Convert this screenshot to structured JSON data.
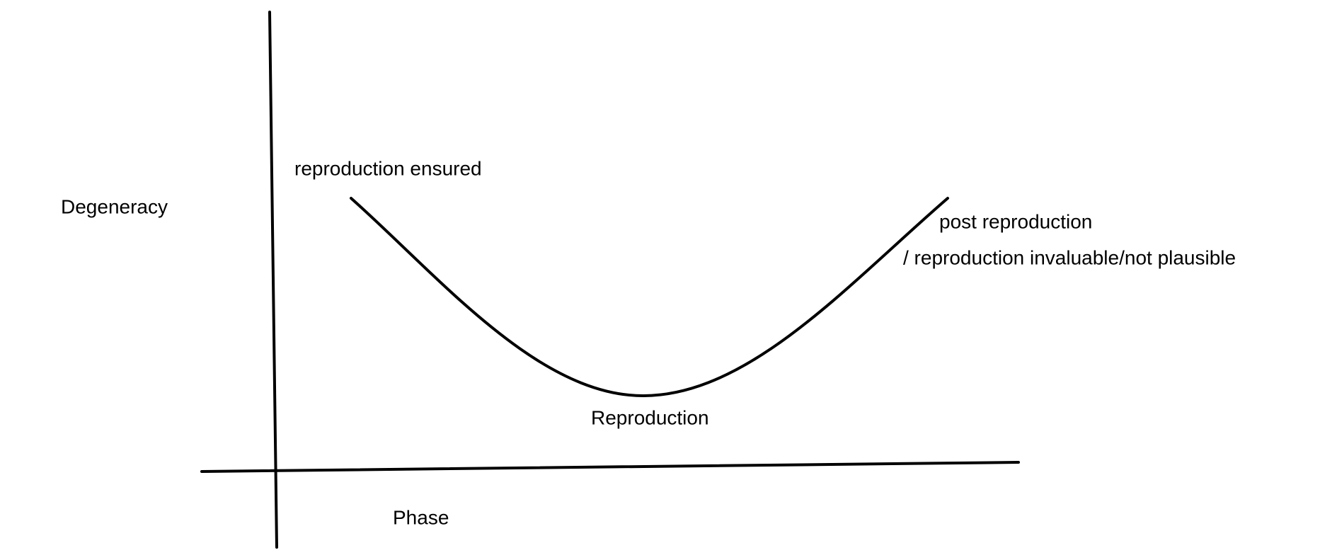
{
  "y_axis_label": "Degeneracy",
  "x_axis_label": "Phase",
  "annotations": {
    "start": "reproduction ensured",
    "minimum": "Reproduction",
    "end_line1": "post reproduction",
    "end_line2": "/ reproduction invaluable/not plausible"
  }
}
